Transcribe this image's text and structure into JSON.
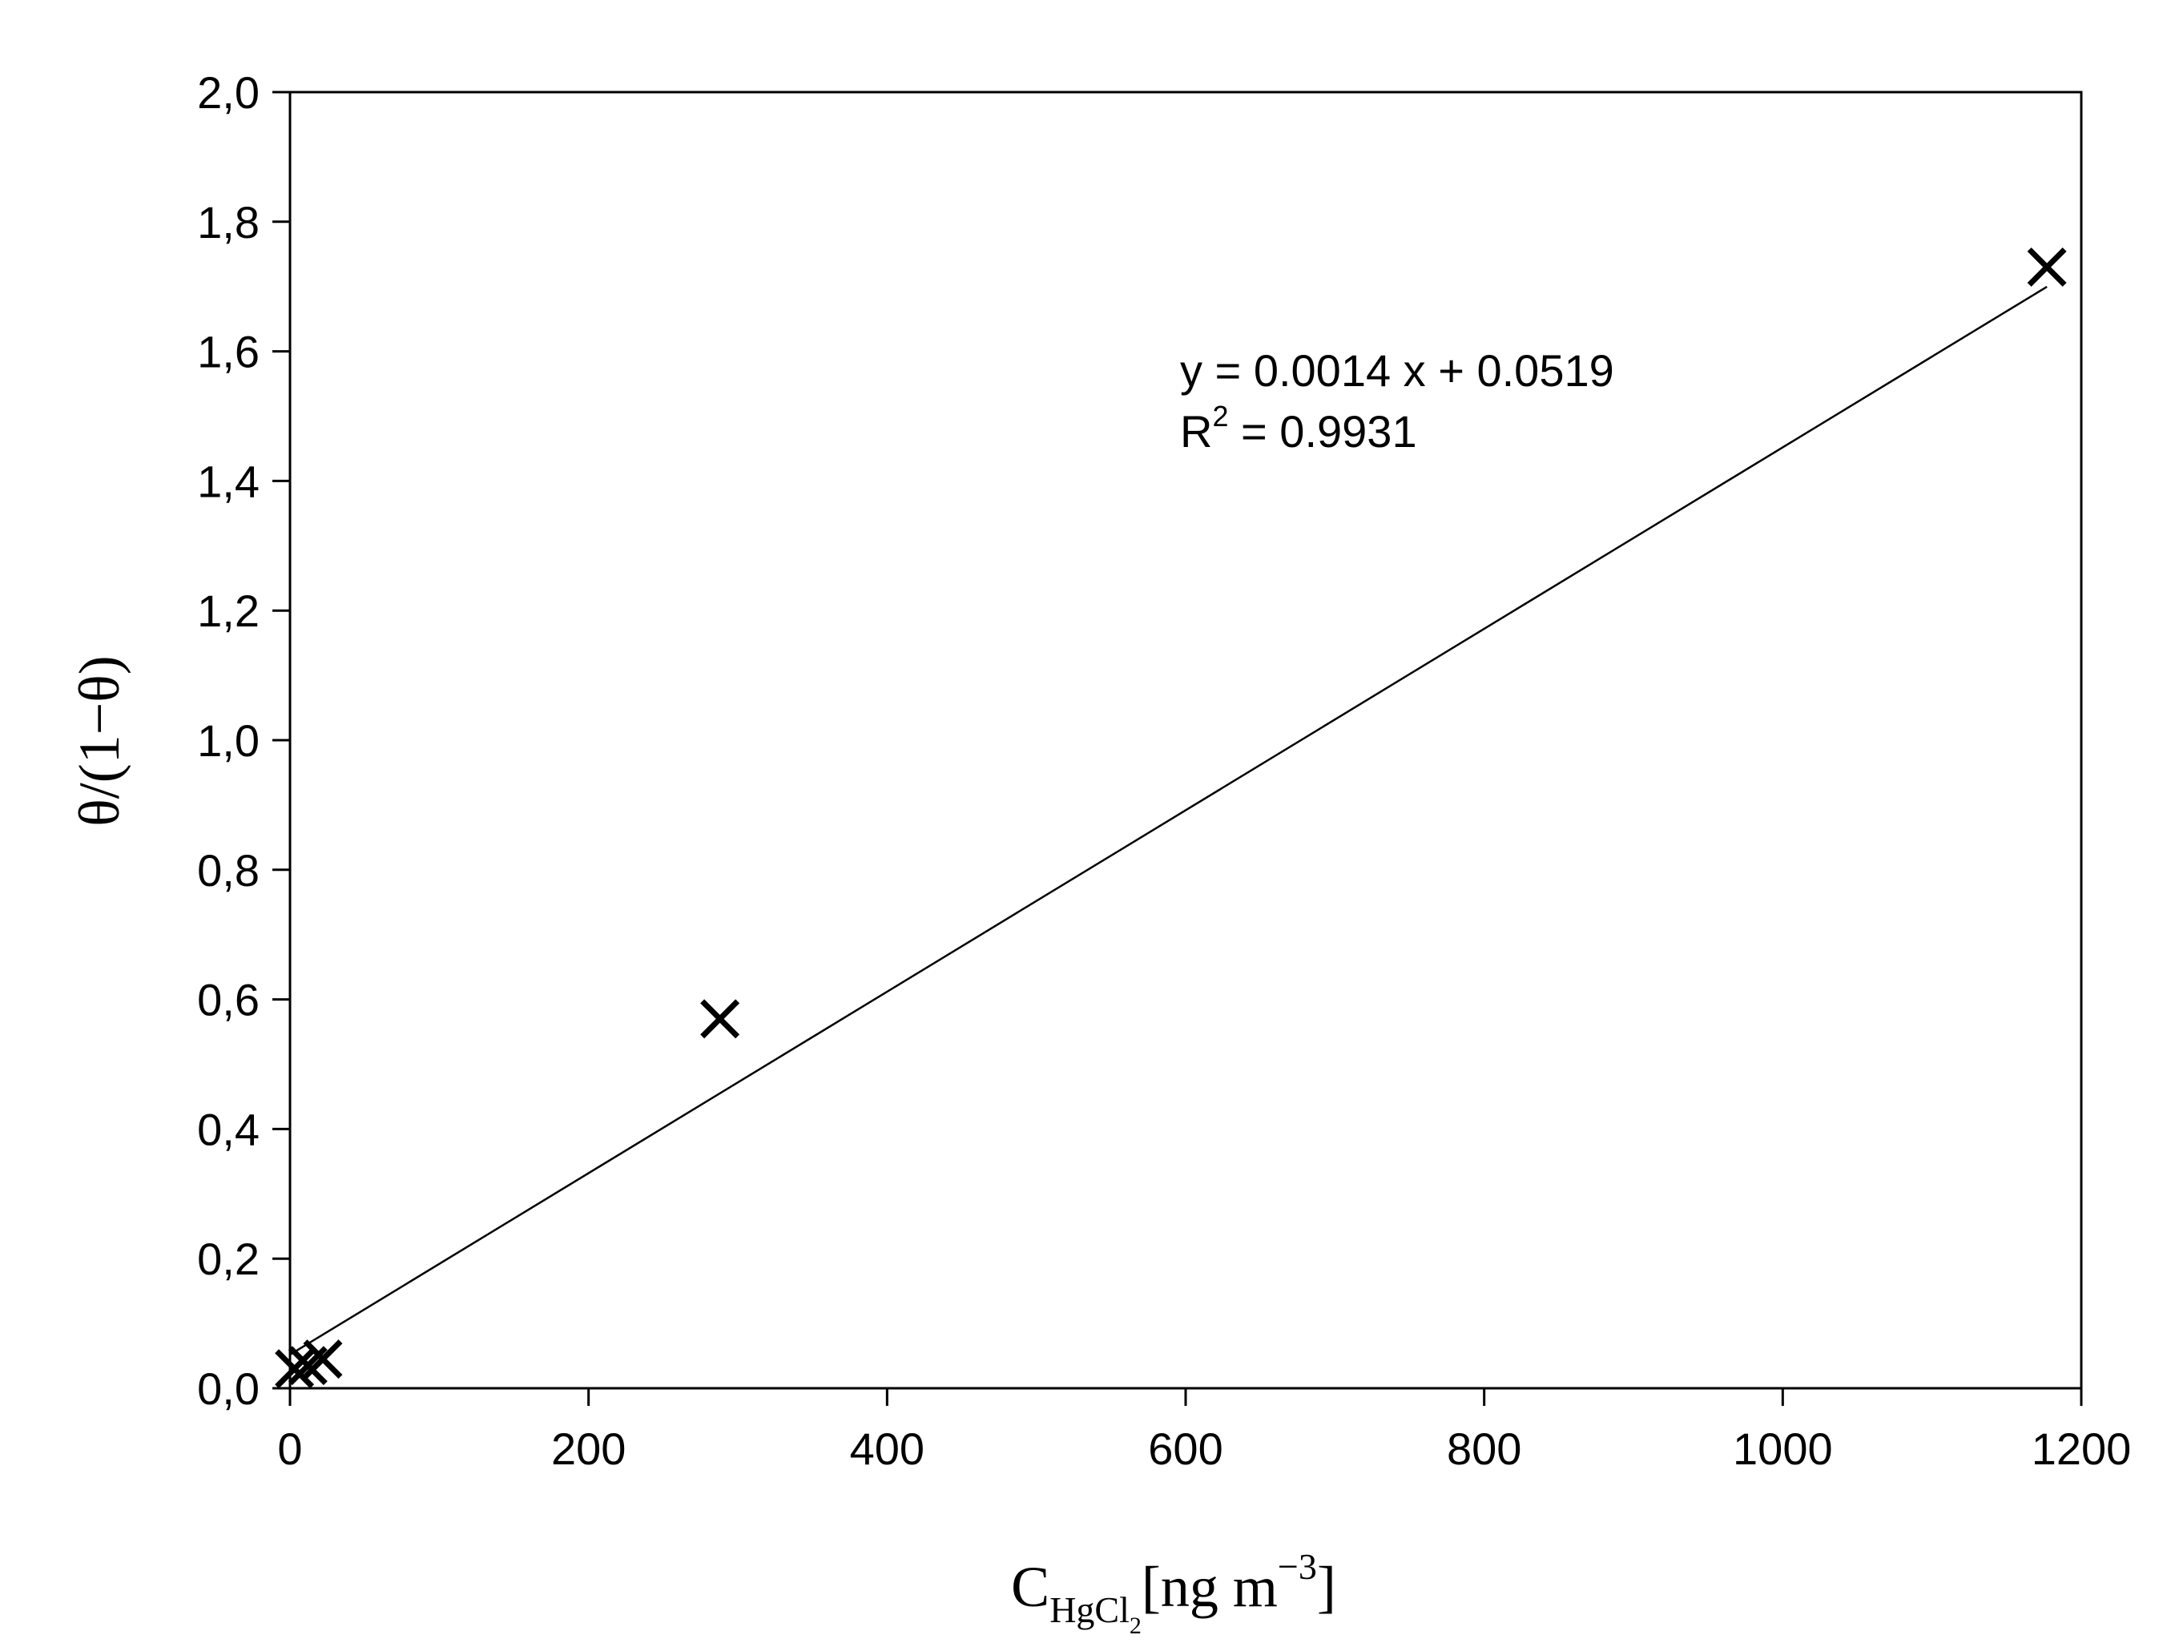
{
  "chart_data": {
    "type": "scatter",
    "xlabel": {
      "main": "C",
      "sub": "HgCl",
      "subsub": "2",
      "unit_open": "[ng m",
      "unit_exp": "−3",
      "unit_close": "]"
    },
    "ylabel": "θ/(1−θ)",
    "xlim": [
      0,
      1200
    ],
    "ylim": [
      0,
      2.0
    ],
    "x_ticks": [
      0,
      200,
      400,
      600,
      800,
      1000,
      1200
    ],
    "x_tick_labels": [
      "0",
      "200",
      "400",
      "600",
      "800",
      "1000",
      "1200"
    ],
    "y_ticks": [
      0,
      0.2,
      0.4,
      0.6,
      0.8,
      1.0,
      1.2,
      1.4,
      1.6,
      1.8,
      2.0
    ],
    "y_tick_labels": [
      "0,0",
      "0,2",
      "0,4",
      "0,6",
      "0,8",
      "1,0",
      "1,2",
      "1,4",
      "1,6",
      "1,8",
      "2,0"
    ],
    "grid": false,
    "series": [
      {
        "marker": "x",
        "x": [
          3,
          12,
          22,
          288,
          1177
        ],
        "y": [
          0.03,
          0.035,
          0.045,
          0.57,
          1.73
        ]
      }
    ],
    "fit_line": {
      "slope": 0.0014,
      "intercept": 0.0519,
      "x_range": [
        0,
        1177
      ]
    },
    "annotation": {
      "equation": "y = 0.0014 x + 0.0519",
      "r2_prefix": "R",
      "r2_exp": "2",
      "r2_value": " = 0.9931"
    }
  }
}
